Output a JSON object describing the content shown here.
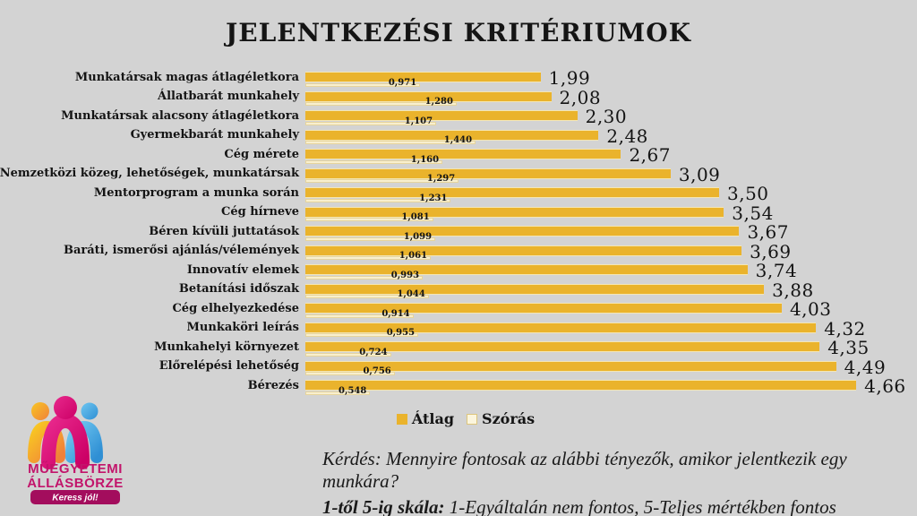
{
  "title": "JELENTKEZÉSI KRITÉRIUMOK",
  "chart_data": {
    "type": "bar",
    "orientation": "horizontal",
    "title": "JELENTKEZÉSI KRITÉRIUMOK",
    "xlim": [
      0,
      5
    ],
    "grid": false,
    "legend_position": "bottom",
    "categories": [
      "Munkatársak magas átlagéletkora",
      "Állatbarát munkahely",
      "Munkatársak alacsony átlagéletkora",
      "Gyermekbarát munkahely",
      "Cég mérete",
      "Nemzetközi közeg, lehetőségek, munkatársak",
      "Mentorprogram a munka során",
      "Cég hírneve",
      "Béren kívüli juttatások",
      "Baráti, ismerősi ajánlás/vélemények",
      "Innovatív elemek",
      "Betanítási időszak",
      "Cég elhelyezkedése",
      "Munkaköri leírás",
      "Munkahelyi környezet",
      "Előrelépési lehetőség",
      "Bérezés"
    ],
    "series": [
      {
        "name": "Átlag",
        "color": "#eab32c",
        "values": [
          1.99,
          2.08,
          2.3,
          2.48,
          2.67,
          3.09,
          3.5,
          3.54,
          3.67,
          3.69,
          3.74,
          3.88,
          4.03,
          4.32,
          4.35,
          4.49,
          4.66
        ],
        "labels": [
          "1,99",
          "2,08",
          "2,30",
          "2,48",
          "2,67",
          "3,09",
          "3,50",
          "3,54",
          "3,67",
          "3,69",
          "3,74",
          "3,88",
          "4,03",
          "4,32",
          "4,35",
          "4,49",
          "4,66"
        ]
      },
      {
        "name": "Szórás",
        "color": "#f8efce",
        "values": [
          0.971,
          1.28,
          1.107,
          1.44,
          1.16,
          1.297,
          1.231,
          1.081,
          1.099,
          1.061,
          0.993,
          1.044,
          0.914,
          0.955,
          0.724,
          0.756,
          0.548
        ],
        "labels": [
          "0,971",
          "1,280",
          "1,107",
          "1,440",
          "1,160",
          "1,297",
          "1,231",
          "1,081",
          "1,099",
          "1,061",
          "0,993",
          "1,044",
          "0,914",
          "0,955",
          "0,724",
          "0,756",
          "0,548"
        ]
      }
    ]
  },
  "legend": {
    "atlag": "Átlag",
    "szoras": "Szórás"
  },
  "footer": {
    "question": "Kérdés: Mennyire fontosak az alábbi tényezők, amikor jelentkezik egy munkára?",
    "scale_bold": "1-től 5-ig skála:",
    "scale_rest": " 1-Egyáltalán nem fontos, 5-Teljes mértékben fontos"
  },
  "logo": {
    "line1": "MŰEGYETEMI",
    "line2": "ÁLLÁSBÖRZE",
    "tagline": "Keress jól!"
  },
  "colors": {
    "background": "#d3d3d3",
    "bar_atlag": "#eab32c",
    "bar_szoras": "#f8efce",
    "bar_szoras_border": "#e6d49c",
    "text": "#141414",
    "logo_magenta": "#c2146b",
    "logo_pill": "#a30d5d",
    "logo_yellow": "#f8c623",
    "logo_orange": "#f0813a",
    "logo_pink": "#e8288c",
    "logo_dark_pink": "#cc0066",
    "logo_blue_light": "#6ec6f0",
    "logo_blue": "#2f8fd4"
  }
}
